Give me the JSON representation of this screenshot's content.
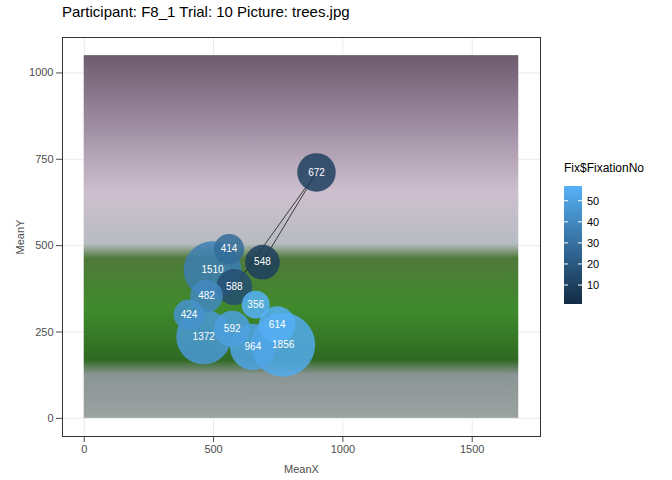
{
  "chart_data": {
    "type": "scatter",
    "title": "Participant: F8_1 Trial: 10 Picture: trees.jpg",
    "x_label": "MeanX",
    "y_label": "MeanY",
    "xlim": [
      -84,
      1764
    ],
    "ylim": [
      -52.5,
      1102.5
    ],
    "xticks": [
      0,
      500,
      1000,
      1500
    ],
    "yticks": [
      0,
      250,
      500,
      750,
      1000
    ],
    "grid": true,
    "data_labels": true,
    "marker": "circle",
    "line_style": "solid",
    "image_xlim": [
      0,
      1680
    ],
    "image_ylim": [
      0,
      1050
    ],
    "x": [
      689,
      898,
      580,
      560,
      496,
      473,
      405,
      462,
      572,
      652,
      769,
      746,
      663
    ],
    "y": [
      452,
      712,
      380,
      490,
      429,
      354,
      300,
      236,
      259,
      207,
      213,
      271,
      329
    ],
    "size": [
      548,
      672,
      588,
      414,
      1510,
      482,
      424,
      1372,
      592,
      964,
      1856,
      614,
      356
    ],
    "fixation_no": [
      9,
      10,
      15,
      28,
      36,
      40,
      44,
      47,
      50,
      52,
      54,
      56,
      57
    ],
    "colorbar": {
      "title": "Fix$FixationNo",
      "range": [
        1,
        57
      ],
      "ticks": [
        10,
        20,
        30,
        40,
        50
      ]
    }
  }
}
